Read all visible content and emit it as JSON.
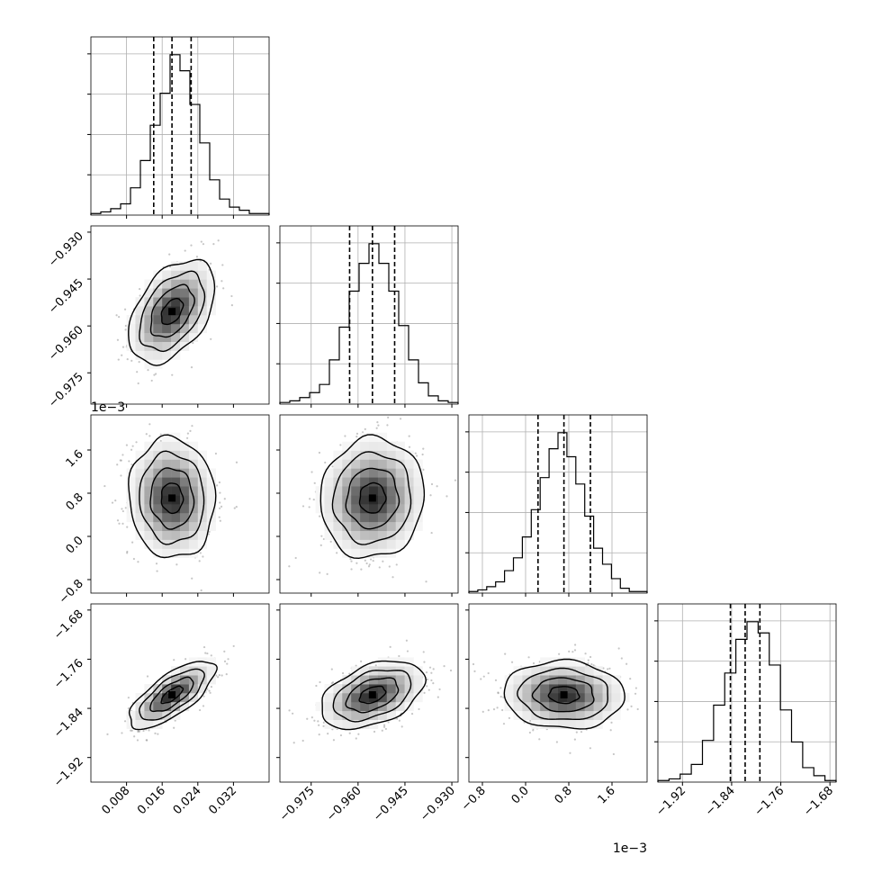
{
  "chart_data": {
    "type": "corner",
    "parameters": [
      {
        "range": [
          0.0,
          0.04
        ],
        "ticks": [
          0.008,
          0.016,
          0.024,
          0.032
        ],
        "tick_labels": [
          "0.008",
          "0.016",
          "0.024",
          "0.032"
        ],
        "offset_text": "",
        "quantiles": [
          0.0141,
          0.0182,
          0.0225
        ],
        "hist_counts": [
          1,
          2,
          4,
          7,
          17,
          34,
          56,
          76,
          100,
          90,
          69,
          45,
          22,
          10,
          5,
          3,
          1,
          1
        ]
      },
      {
        "range": [
          -0.985,
          -0.928
        ],
        "ticks": [
          -0.975,
          -0.96,
          -0.945,
          -0.93
        ],
        "tick_labels": [
          "−0.975",
          "−0.960",
          "−0.945",
          "−0.930"
        ],
        "offset_text": "",
        "quantiles": [
          -0.9627,
          -0.9554,
          -0.9483
        ],
        "hist_counts": [
          1,
          2,
          4,
          7,
          12,
          27,
          47,
          69,
          86,
          98,
          86,
          69,
          48,
          27,
          13,
          5,
          2,
          1
        ]
      },
      {
        "range": [
          -1.05,
          2.25
        ],
        "ticks": [
          -0.8,
          0.0,
          0.8,
          1.6
        ],
        "tick_labels": [
          "−0.8",
          "0.0",
          "0.8",
          "1.6"
        ],
        "offset_text": "1e−3",
        "quantiles": [
          0.23,
          0.71,
          1.2
        ],
        "hist_counts": [
          1,
          2,
          4,
          7,
          14,
          22,
          35,
          52,
          72,
          90,
          100,
          85,
          68,
          48,
          28,
          18,
          9,
          3,
          1,
          1
        ]
      },
      {
        "range": [
          -1.96,
          -1.67
        ],
        "ticks": [
          -1.92,
          -1.84,
          -1.76,
          -1.68
        ],
        "tick_labels": [
          "−1.92",
          "−1.84",
          "−1.76",
          "−1.68"
        ],
        "offset_text": "",
        "quantiles": [
          -1.842,
          -1.818,
          -1.794
        ],
        "hist_counts": [
          1,
          2,
          5,
          11,
          26,
          48,
          68,
          89,
          100,
          93,
          73,
          45,
          25,
          9,
          4,
          1
        ]
      }
    ],
    "correlations": [
      {
        "row": 1,
        "col": 0,
        "rho": 0.45
      },
      {
        "row": 2,
        "col": 0,
        "rho": -0.05
      },
      {
        "row": 2,
        "col": 1,
        "rho": 0.05
      },
      {
        "row": 3,
        "col": 0,
        "rho": 0.72
      },
      {
        "row": 3,
        "col": 1,
        "rho": 0.42
      },
      {
        "row": 3,
        "col": 2,
        "rho": -0.05
      }
    ],
    "grid": true,
    "colors": {
      "line": "#000000",
      "grid": "#b0b0b0",
      "points": "#808080"
    }
  }
}
